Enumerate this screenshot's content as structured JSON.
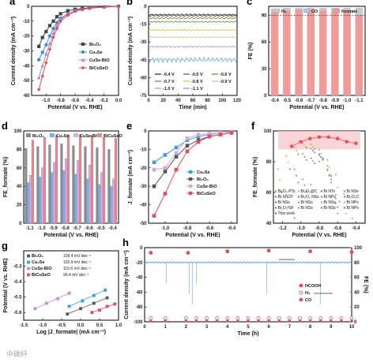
{
  "chart_data": [
    {
      "panel": "a",
      "type": "line",
      "xlabel": "Potential (V vs. RHE)",
      "ylabel": "Current density (mA cm⁻²)",
      "xlim": [
        -1.2,
        0.0
      ],
      "ylim": [
        -60,
        0
      ],
      "xticks": [
        "-1.0",
        "-0.8",
        "-0.6",
        "-0.4",
        "-0.2",
        "0.0"
      ],
      "yticks": [
        "0",
        "-10",
        "-20",
        "-30",
        "-40",
        "-50",
        "-60"
      ],
      "legend_position": "center-right",
      "series": [
        {
          "name": "Bi₂O₃",
          "color": "#444444",
          "marker": "square",
          "points": [
            [
              -1.1,
              -27
            ],
            [
              -1.05,
              -21
            ],
            [
              -1.0,
              -17
            ],
            [
              -0.95,
              -13
            ],
            [
              -0.9,
              -10
            ],
            [
              -0.85,
              -7
            ],
            [
              -0.8,
              -5
            ],
            [
              -0.7,
              -3
            ],
            [
              -0.6,
              -2
            ],
            [
              -0.5,
              -1.5
            ],
            [
              -0.4,
              -1
            ],
            [
              -0.2,
              -0.5
            ],
            [
              0.0,
              0
            ]
          ]
        },
        {
          "name": "Cu₂Se",
          "color": "#3a8fd6",
          "marker": "circle",
          "points": [
            [
              -1.1,
              -36
            ],
            [
              -1.05,
              -31
            ],
            [
              -1.0,
              -26
            ],
            [
              -0.95,
              -20
            ],
            [
              -0.9,
              -15
            ],
            [
              -0.85,
              -11
            ],
            [
              -0.8,
              -8
            ],
            [
              -0.7,
              -5
            ],
            [
              -0.6,
              -3
            ],
            [
              -0.5,
              -2
            ],
            [
              -0.4,
              -1.3
            ],
            [
              -0.2,
              -0.5
            ],
            [
              0.0,
              0
            ]
          ]
        },
        {
          "name": "CuSe-BiO",
          "color": "#b47fd8",
          "marker": "triangle",
          "points": [
            [
              -1.1,
              -48
            ],
            [
              -1.05,
              -40
            ],
            [
              -1.0,
              -32
            ],
            [
              -0.95,
              -25
            ],
            [
              -0.9,
              -18
            ],
            [
              -0.85,
              -13
            ],
            [
              -0.8,
              -9
            ],
            [
              -0.7,
              -5
            ],
            [
              -0.6,
              -3
            ],
            [
              -0.5,
              -2
            ],
            [
              -0.4,
              -1.2
            ],
            [
              -0.2,
              -0.4
            ],
            [
              0.0,
              0
            ]
          ]
        },
        {
          "name": "BiCuSeO",
          "color": "#e8454e",
          "marker": "diamond",
          "points": [
            [
              -1.1,
              -56
            ],
            [
              -1.05,
              -47
            ],
            [
              -1.0,
              -38
            ],
            [
              -0.95,
              -29
            ],
            [
              -0.9,
              -21
            ],
            [
              -0.85,
              -15
            ],
            [
              -0.8,
              -10
            ],
            [
              -0.7,
              -6
            ],
            [
              -0.6,
              -3.5
            ],
            [
              -0.5,
              -2
            ],
            [
              -0.4,
              -1.2
            ],
            [
              -0.2,
              -0.4
            ],
            [
              0.0,
              0
            ]
          ]
        }
      ]
    },
    {
      "panel": "b",
      "type": "line",
      "xlabel": "Time (min)",
      "ylabel": "Current density (mA cm⁻²)",
      "xlim": [
        0,
        120
      ],
      "ylim": [
        -75,
        0
      ],
      "xticks": [
        "0",
        "20",
        "40",
        "60",
        "80",
        "100",
        "120"
      ],
      "yticks": [
        "0",
        "-15",
        "-30",
        "-45",
        "-60",
        "-75"
      ],
      "legend_position": "bottom",
      "series": [
        {
          "name": "-0.4 V",
          "color": "#222222",
          "value": -7
        },
        {
          "name": "-0.5 V",
          "color": "#555555",
          "value": -8
        },
        {
          "name": "-0.6 V",
          "color": "#8a6d2a",
          "value": -10
        },
        {
          "name": "-0.7 V",
          "color": "#3a9a3a",
          "value": -13
        },
        {
          "name": "-0.8 V",
          "color": "#c8c832",
          "value": -20
        },
        {
          "name": "-0.9 V",
          "color": "#c9c08a",
          "value": -26
        },
        {
          "name": "-1.0 V",
          "color": "#b58ad6",
          "value": -34
        },
        {
          "name": "-1.1 V",
          "color": "#5aa6e6",
          "value": -45
        }
      ]
    },
    {
      "panel": "c",
      "type": "bar",
      "xlabel": "Potential (V vs. RHE)",
      "ylabel": "FE (%)",
      "ylim": [
        0,
        100
      ],
      "yticks": [
        "0",
        "30",
        "60",
        "90"
      ],
      "categories": [
        "-0.4",
        "-0.5",
        "-0.6",
        "-0.7",
        "-0.8",
        "-0.9",
        "-1.0",
        "-1.1"
      ],
      "reference_line": 90,
      "legend_position": "top",
      "series": [
        {
          "name": "H₂",
          "color": "#c9c9c9",
          "values": [
            4,
            3,
            2,
            2,
            3,
            4,
            5,
            8
          ]
        },
        {
          "name": "CO",
          "color": "#a9c7ef",
          "values": [
            0,
            0,
            0,
            0,
            0,
            0,
            0,
            0
          ]
        },
        {
          "name": "formate",
          "color": "#f29a98",
          "values": [
            93,
            95,
            96,
            96,
            95,
            94,
            93,
            90
          ]
        }
      ]
    },
    {
      "panel": "d",
      "type": "bar",
      "xlabel": "Potential (V vs. RHE)",
      "ylabel": "FE_formate (%)",
      "ylim": [
        0,
        100
      ],
      "yticks": [
        "0",
        "20",
        "40",
        "60",
        "80",
        "100"
      ],
      "categories": [
        "-1.1",
        "-1.0",
        "-0.9",
        "-0.8",
        "-0.7",
        "-0.6",
        "-0.5",
        "-0.4"
      ],
      "legend_position": "top",
      "series": [
        {
          "name": "Bi₂O₃",
          "color": "#8c8c8c",
          "values": [
            81,
            83,
            85,
            86,
            84,
            83,
            82,
            80
          ]
        },
        {
          "name": "Cu₂Se",
          "color": "#6fb3ef",
          "values": [
            44,
            50,
            55,
            57,
            53,
            48,
            42,
            40
          ]
        },
        {
          "name": "CuSe-BiO",
          "color": "#e0a8e6",
          "values": [
            52,
            60,
            66,
            70,
            68,
            63,
            55,
            48
          ]
        },
        {
          "name": "BiCuSeO",
          "color": "#f4828a",
          "values": [
            90,
            93,
            95,
            96,
            96,
            95,
            93,
            92
          ]
        }
      ]
    },
    {
      "panel": "e",
      "type": "line",
      "xlabel": "Potential (V vs. RHE)",
      "ylabel": "J_formate (mA cm⁻²)",
      "xlim": [
        -1.15,
        -0.35
      ],
      "ylim": [
        -50,
        0
      ],
      "xticks": [
        "-1.0",
        "-0.8",
        "-0.6",
        "-0.4"
      ],
      "yticks": [
        "0",
        "-10",
        "-20",
        "-30",
        "-40",
        "-50"
      ],
      "legend_position": "center-right",
      "series": [
        {
          "name": "Cu₂Se",
          "color": "#3a9ee6",
          "marker": "square",
          "points": [
            [
              -1.1,
              -17
            ],
            [
              -1.0,
              -13
            ],
            [
              -0.9,
              -9
            ],
            [
              -0.8,
              -5
            ],
            [
              -0.7,
              -3
            ],
            [
              -0.6,
              -2
            ],
            [
              -0.5,
              -1
            ],
            [
              -0.4,
              -0.5
            ]
          ]
        },
        {
          "name": "Bi₂O₃",
          "color": "#555555",
          "marker": "square",
          "points": [
            [
              -1.1,
              -30
            ],
            [
              -1.0,
              -22
            ],
            [
              -0.9,
              -14
            ],
            [
              -0.8,
              -8
            ],
            [
              -0.7,
              -5
            ],
            [
              -0.6,
              -3
            ],
            [
              -0.5,
              -2
            ],
            [
              -0.4,
              -1
            ]
          ]
        },
        {
          "name": "CuSe-BiO",
          "color": "#d9a3e0",
          "marker": "square",
          "points": [
            [
              -1.1,
              -21
            ],
            [
              -1.0,
              -20
            ],
            [
              -0.9,
              -12
            ],
            [
              -0.8,
              -4
            ],
            [
              -0.7,
              -2
            ],
            [
              -0.6,
              -1.5
            ],
            [
              -0.5,
              -1
            ],
            [
              -0.4,
              -0.5
            ]
          ]
        },
        {
          "name": "BiCuSeO",
          "color": "#e84a55",
          "marker": "square",
          "points": [
            [
              -1.1,
              -46
            ],
            [
              -1.0,
              -34
            ],
            [
              -0.9,
              -21
            ],
            [
              -0.8,
              -11
            ],
            [
              -0.7,
              -6
            ],
            [
              -0.6,
              -3
            ],
            [
              -0.5,
              -2
            ],
            [
              -0.4,
              -1
            ]
          ]
        }
      ]
    },
    {
      "panel": "f",
      "type": "scatter",
      "xlabel": "Potential (V vs. RHE)",
      "ylabel": "FE_formate (%)",
      "xlim": [
        -1.3,
        -0.3
      ],
      "ylim": [
        40,
        100
      ],
      "xticks": [
        "-1.2",
        "-1.0",
        "-0.8",
        "-0.6",
        "-0.4"
      ],
      "yticks": [
        "40",
        "60",
        "80",
        "100"
      ],
      "legend_position": "bottom",
      "legend_entries": [
        "Bi₂O₃ PTs",
        "Bi₂O₃@C",
        "Bi NTs",
        "Bi NSs",
        "Bi-SnCP",
        "Bi₂O₃ NSs",
        "Bi NPs",
        "Bi₂O₃C",
        "Bi NSs",
        "Bi NSs",
        "Bi NSs",
        "Bi NPs",
        "Bi₂O₃ SF",
        "Bi NSs",
        "Bi NSs",
        "Bi NPs",
        "This work"
      ],
      "highlight": {
        "name": "This work",
        "color": "#e84a55",
        "points": [
          [
            -1.1,
            90
          ],
          [
            -1.0,
            93
          ],
          [
            -0.9,
            95
          ],
          [
            -0.8,
            96
          ],
          [
            -0.7,
            96
          ],
          [
            -0.6,
            95
          ],
          [
            -0.5,
            93
          ],
          [
            -0.4,
            92
          ]
        ]
      }
    },
    {
      "panel": "g",
      "type": "scatter",
      "xlabel": "Log |J_formate| (mA cm⁻²)",
      "ylabel": "Potential (V vs. RHE)",
      "xlim": [
        -1.5,
        1.0
      ],
      "ylim": [
        -0.65,
        -0.2
      ],
      "xticks": [
        "-1.5",
        "-1.0",
        "-0.5",
        "0.0",
        "0.5",
        "1.0"
      ],
      "yticks": [
        "-0.3",
        "-0.4",
        "-0.5",
        "-0.6"
      ],
      "legend_position": "top-left",
      "series": [
        {
          "name": "Bi₂O₃",
          "color": "#555555",
          "marker": "square",
          "tafel": "109.4 mV dec⁻¹",
          "points": [
            [
              -0.35,
              -0.61
            ],
            [
              0.0,
              -0.575
            ],
            [
              0.35,
              -0.54
            ],
            [
              0.7,
              -0.505
            ]
          ]
        },
        {
          "name": "Cu₂Se",
          "color": "#3a9ee6",
          "marker": "square",
          "tafel": "102.9 mV dec⁻¹",
          "points": [
            [
              -0.3,
              -0.56
            ],
            [
              0.05,
              -0.525
            ],
            [
              0.35,
              -0.49
            ],
            [
              0.65,
              -0.455
            ]
          ]
        },
        {
          "name": "CuSe-BiO",
          "color": "#c48ad6",
          "marker": "square",
          "tafel": "115.6 mV dec⁻¹",
          "points": [
            [
              -1.2,
              -0.575
            ],
            [
              -0.9,
              -0.54
            ],
            [
              -0.6,
              -0.51
            ],
            [
              -0.3,
              -0.475
            ]
          ]
        },
        {
          "name": "BiCuSeO",
          "color": "#e84a55",
          "marker": "square",
          "tafel": "90.4 mV dec⁻¹",
          "points": [
            [
              0.3,
              -0.6
            ],
            [
              0.5,
              -0.585
            ],
            [
              0.7,
              -0.56
            ],
            [
              0.9,
              -0.545
            ]
          ]
        }
      ]
    },
    {
      "panel": "h",
      "type": "line",
      "xlabel": "Time (h)",
      "ylabel": "Current density (mA cm⁻²)",
      "y2label": "FE (%)",
      "xlim": [
        0,
        10
      ],
      "ylim": [
        -100,
        0
      ],
      "y2lim": [
        0,
        100
      ],
      "xticks": [
        "0",
        "1",
        "2",
        "3",
        "4",
        "5",
        "6",
        "7",
        "8",
        "9",
        "10"
      ],
      "yticks": [
        "0",
        "-20",
        "-40",
        "-60",
        "-80",
        "-100"
      ],
      "y2ticks": [
        "0",
        "20",
        "40",
        "60",
        "80",
        "100"
      ],
      "current_density": -20,
      "legend_position": "center-right",
      "legend": [
        {
          "name": "HCOOH",
          "color": "#e84a55",
          "marker": "filled-circle"
        },
        {
          "name": "H₂",
          "color": "#e84a55",
          "marker": "open-circle"
        },
        {
          "name": "CO",
          "color": "#e84a55",
          "marker": "filled-circle"
        }
      ],
      "fe_formate": [
        [
          0.3,
          93
        ],
        [
          2.1,
          93
        ],
        [
          4.0,
          95
        ],
        [
          6.0,
          96
        ],
        [
          8.0,
          95
        ],
        [
          10.0,
          94
        ]
      ],
      "fe_h2": [
        [
          0.3,
          5
        ],
        [
          1,
          5
        ],
        [
          2,
          5
        ],
        [
          2.5,
          5
        ],
        [
          3,
          5
        ],
        [
          3.5,
          5
        ],
        [
          4,
          5
        ],
        [
          4.5,
          5
        ],
        [
          5,
          5
        ],
        [
          5.5,
          5
        ],
        [
          6,
          5
        ],
        [
          6.5,
          5
        ],
        [
          7,
          5
        ],
        [
          7.5,
          5
        ],
        [
          8,
          5
        ],
        [
          8.5,
          5
        ],
        [
          9,
          5
        ],
        [
          9.5,
          5
        ],
        [
          10,
          5
        ]
      ],
      "fe_co": [
        [
          0.3,
          1
        ],
        [
          1,
          1
        ],
        [
          2,
          1
        ],
        [
          2.5,
          1
        ],
        [
          3,
          1
        ],
        [
          3.5,
          1
        ],
        [
          4,
          1
        ],
        [
          4.5,
          1
        ],
        [
          5,
          1
        ],
        [
          5.5,
          1
        ],
        [
          6,
          1
        ],
        [
          6.5,
          1
        ],
        [
          7,
          1
        ],
        [
          7.5,
          1
        ],
        [
          8,
          1
        ],
        [
          8.5,
          1
        ],
        [
          9,
          1
        ],
        [
          9.5,
          1
        ],
        [
          10,
          1
        ]
      ]
    }
  ],
  "panel_labels": [
    "a",
    "b",
    "c",
    "d",
    "e",
    "f",
    "g",
    "h"
  ],
  "watermark": "中碳纤"
}
